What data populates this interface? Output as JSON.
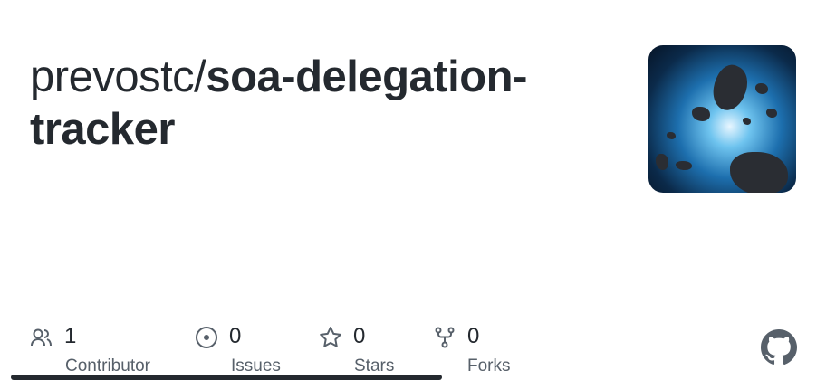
{
  "repo": {
    "owner": "prevostc/",
    "name": "soa-delegation-tracker"
  },
  "thumbnail": {
    "description_icon": "asteroid-field-image"
  },
  "stats": [
    {
      "icon": "people-icon",
      "value": "1",
      "label": "Contributor"
    },
    {
      "icon": "issue-circle-icon",
      "value": "0",
      "label": "Issues"
    },
    {
      "icon": "star-icon",
      "value": "0",
      "label": "Stars"
    },
    {
      "icon": "fork-icon",
      "value": "0",
      "label": "Forks"
    }
  ],
  "colors": {
    "text": "#24292f",
    "muted": "#57606a",
    "language_bar": "#24292f"
  },
  "brand_icon": "github-icon"
}
